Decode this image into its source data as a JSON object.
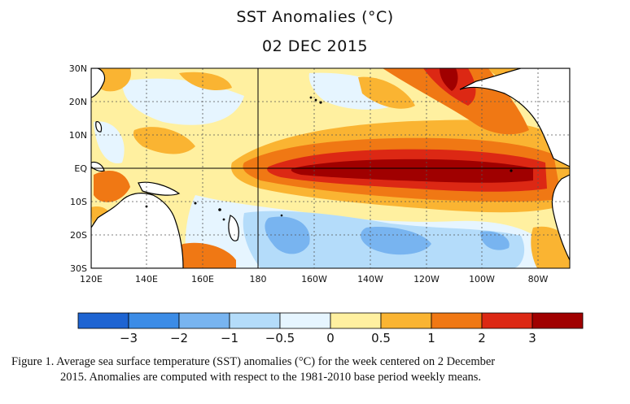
{
  "title": "SST Anomalies (°C)",
  "subtitle": "02 DEC 2015",
  "map": {
    "lat_labels": [
      "30N",
      "20N",
      "10N",
      "EQ",
      "10S",
      "20S",
      "30S"
    ],
    "lon_labels": [
      "120E",
      "140E",
      "160E",
      "180",
      "160W",
      "140W",
      "120W",
      "100W",
      "80W"
    ]
  },
  "colorbar": {
    "colors": [
      "#1e64d2",
      "#3c8ce6",
      "#78b4f0",
      "#b4dcfa",
      "#e6f5ff",
      "#fff0a0",
      "#fab432",
      "#f07814",
      "#dc2814",
      "#a00000"
    ],
    "labels": [
      "−3",
      "−2",
      "−1",
      "−0.5",
      "0",
      "0.5",
      "1",
      "2",
      "3"
    ]
  },
  "caption": {
    "line1": "Figure 1. Average sea surface temperature (SST) anomalies (°C) for the week centered on 2 December",
    "line2": "2015.  Anomalies are computed with respect to the 1981-2010 base period weekly means."
  }
}
